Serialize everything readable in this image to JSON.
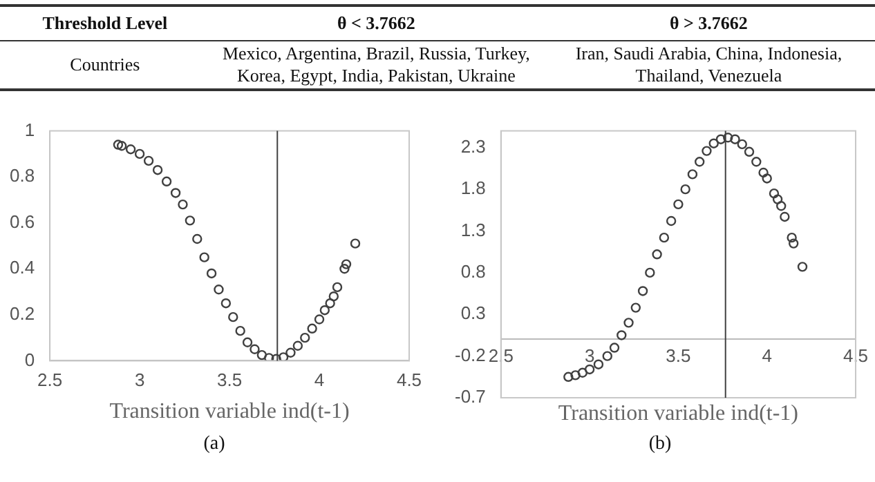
{
  "chart_data": [
    {
      "type": "other",
      "annotations": [
        "Threshold Level",
        "θ < 3.7662",
        "θ > 3.7662",
        "Countries",
        "Mexico, Argentina, Brazil, Russia, Turkey, Korea, Egypt, India, Pakistan, Ukraine",
        "Iran, Saudi Arabia, China, Indonesia, Thailand, Venezuela"
      ]
    },
    {
      "type": "scatter",
      "xlabel": "Transition variable ind(t-1)",
      "annotations": [
        "(a)"
      ],
      "marker": "circle",
      "grid": false,
      "xlim": [
        2.5,
        4.5
      ],
      "xticks": [
        2.5,
        3,
        3.5,
        4,
        4.5
      ],
      "ylim": [
        0,
        1
      ],
      "yticks": [
        0,
        0.2,
        0.4,
        0.6,
        0.8,
        1
      ],
      "ref_lines": [
        {
          "axis": "x",
          "value": 3.7662,
          "color": "#404040"
        }
      ],
      "x": [
        2.88,
        2.9,
        2.95,
        3.0,
        3.05,
        3.1,
        3.15,
        3.2,
        3.24,
        3.28,
        3.32,
        3.36,
        3.4,
        3.44,
        3.48,
        3.52,
        3.56,
        3.6,
        3.64,
        3.68,
        3.72,
        3.76,
        3.8,
        3.84,
        3.88,
        3.92,
        3.96,
        4.0,
        4.03,
        4.06,
        4.08,
        4.1,
        4.14,
        4.15,
        4.2
      ],
      "series": [
        {
          "color": "#404040",
          "values": [
            0.94,
            0.935,
            0.92,
            0.9,
            0.87,
            0.83,
            0.78,
            0.73,
            0.68,
            0.61,
            0.53,
            0.45,
            0.38,
            0.31,
            0.25,
            0.19,
            0.13,
            0.08,
            0.05,
            0.025,
            0.012,
            0.008,
            0.015,
            0.035,
            0.065,
            0.1,
            0.14,
            0.18,
            0.22,
            0.25,
            0.28,
            0.32,
            0.4,
            0.42,
            0.51
          ]
        }
      ]
    },
    {
      "type": "scatter",
      "xlabel": "Transition variable ind(t-1)",
      "annotations": [
        "(b)"
      ],
      "marker": "circle",
      "grid": false,
      "xlim": [
        2.5,
        4.5
      ],
      "xticks": [
        2.5,
        3,
        3.5,
        4,
        4.5
      ],
      "ylim": [
        -0.7,
        2.5
      ],
      "yticks": [
        -0.7,
        -0.2,
        0.3,
        0.8,
        1.3,
        1.8,
        2.3
      ],
      "ref_lines": [
        {
          "axis": "x",
          "value": 3.7662,
          "color": "#404040"
        }
      ],
      "x": [
        2.88,
        2.92,
        2.96,
        3.0,
        3.05,
        3.1,
        3.14,
        3.18,
        3.22,
        3.26,
        3.3,
        3.34,
        3.38,
        3.42,
        3.46,
        3.5,
        3.54,
        3.58,
        3.62,
        3.66,
        3.7,
        3.74,
        3.78,
        3.82,
        3.86,
        3.9,
        3.94,
        3.98,
        4.0,
        4.04,
        4.06,
        4.08,
        4.1,
        4.14,
        4.15,
        4.2
      ],
      "series": [
        {
          "color": "#404040",
          "values": [
            -0.45,
            -0.43,
            -0.4,
            -0.36,
            -0.3,
            -0.2,
            -0.1,
            0.05,
            0.2,
            0.38,
            0.58,
            0.8,
            1.02,
            1.22,
            1.42,
            1.62,
            1.8,
            1.98,
            2.13,
            2.26,
            2.35,
            2.4,
            2.42,
            2.4,
            2.34,
            2.25,
            2.13,
            2.0,
            1.93,
            1.75,
            1.68,
            1.6,
            1.47,
            1.22,
            1.15,
            0.87
          ]
        }
      ]
    }
  ]
}
